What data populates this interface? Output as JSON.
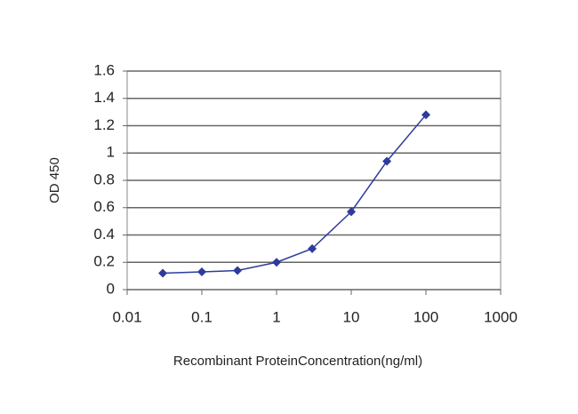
{
  "chart_data": {
    "type": "line",
    "x_label": "Recombinant ProteinConcentration(ng/ml)",
    "y_label": "OD 450",
    "x": [
      0.03,
      0.1,
      0.3,
      1,
      3,
      10,
      30,
      100
    ],
    "values": [
      0.12,
      0.13,
      0.14,
      0.2,
      0.3,
      0.57,
      0.94,
      1.28
    ],
    "color": "#2e3b9c",
    "xscale": "log",
    "xlim": [
      0.01,
      1000
    ],
    "xticks": [
      0.01,
      0.1,
      1,
      10,
      100,
      1000
    ],
    "ylim": [
      0,
      1.6
    ],
    "yticks": [
      0,
      0.2,
      0.4,
      0.6,
      0.8,
      1,
      1.2,
      1.4,
      1.6
    ],
    "grid": true
  }
}
